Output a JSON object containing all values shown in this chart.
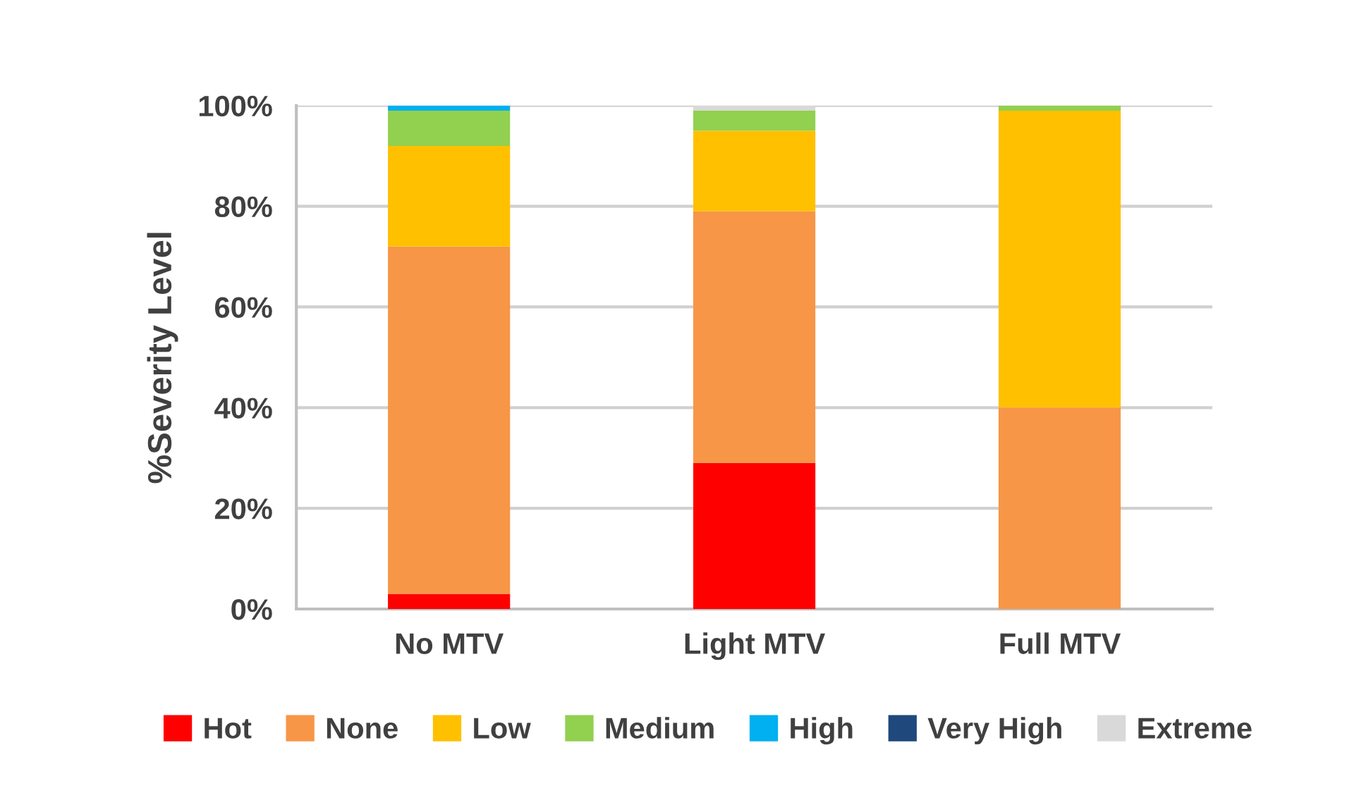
{
  "chart_data": {
    "type": "bar",
    "stacked": true,
    "ylabel": "%Severity Level",
    "categories": [
      "No MTV",
      "Light MTV",
      "Full MTV"
    ],
    "series": [
      {
        "name": "Hot",
        "color": "#ff0000",
        "values": [
          3,
          29,
          0
        ]
      },
      {
        "name": "None",
        "color": "#f79646",
        "values": [
          69,
          50,
          40
        ]
      },
      {
        "name": "Low",
        "color": "#ffc000",
        "values": [
          20,
          16,
          59
        ]
      },
      {
        "name": "Medium",
        "color": "#92d050",
        "values": [
          7,
          4,
          1
        ]
      },
      {
        "name": "High",
        "color": "#00b0f0",
        "values": [
          1,
          0,
          0
        ]
      },
      {
        "name": "Very High",
        "color": "#1f497d",
        "values": [
          0,
          0,
          0
        ]
      },
      {
        "name": "Extreme",
        "color": "#d9d9d9",
        "values": [
          0,
          1,
          0
        ]
      }
    ],
    "ylim": [
      0,
      100
    ],
    "yticks": [
      {
        "value": 0,
        "label": "0%"
      },
      {
        "value": 20,
        "label": "20%"
      },
      {
        "value": 40,
        "label": "40%"
      },
      {
        "value": 60,
        "label": "60%"
      },
      {
        "value": 80,
        "label": "80%"
      },
      {
        "value": 100,
        "label": "100%"
      }
    ],
    "grid": "y",
    "legend": "bottom"
  }
}
